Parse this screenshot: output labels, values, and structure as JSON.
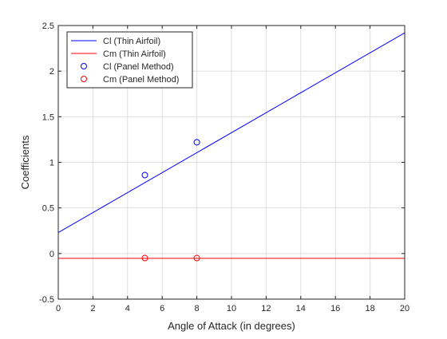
{
  "chart_data": {
    "type": "line",
    "title": "",
    "xlabel": "Angle of Attack (in degrees)",
    "ylabel": "Coefficients",
    "xlim": [
      0,
      20
    ],
    "ylim": [
      -0.5,
      2.5
    ],
    "grid": true,
    "legend_location": "top-left",
    "xticks": [
      0,
      2,
      4,
      6,
      8,
      10,
      12,
      14,
      16,
      18,
      20
    ],
    "yticks": [
      -0.5,
      0,
      0.5,
      1,
      1.5,
      2,
      2.5
    ],
    "xtick_labels": [
      "0",
      "2",
      "4",
      "6",
      "8",
      "10",
      "12",
      "14",
      "16",
      "18",
      "20"
    ],
    "ytick_labels": [
      "-0.5",
      "0",
      "0.5",
      "1",
      "1.5",
      "2",
      "2.5"
    ],
    "series": [
      {
        "name": "Cl (Thin Airfoil)",
        "kind": "line",
        "color": "#0000ff",
        "x": [
          0,
          20
        ],
        "y": [
          0.23,
          2.42
        ]
      },
      {
        "name": "Cm (Thin Airfoil)",
        "kind": "line",
        "color": "#ff0000",
        "x": [
          0,
          20
        ],
        "y": [
          -0.053,
          -0.053
        ]
      },
      {
        "name": "Cl (Panel Method)",
        "kind": "marker",
        "marker": "circle",
        "color": "#0000ff",
        "x": [
          5,
          8
        ],
        "y": [
          0.86,
          1.22
        ]
      },
      {
        "name": "Cm (Panel Method)",
        "kind": "marker",
        "marker": "circle",
        "color": "#ff0000",
        "x": [
          5,
          8
        ],
        "y": [
          -0.05,
          -0.05
        ]
      }
    ]
  }
}
